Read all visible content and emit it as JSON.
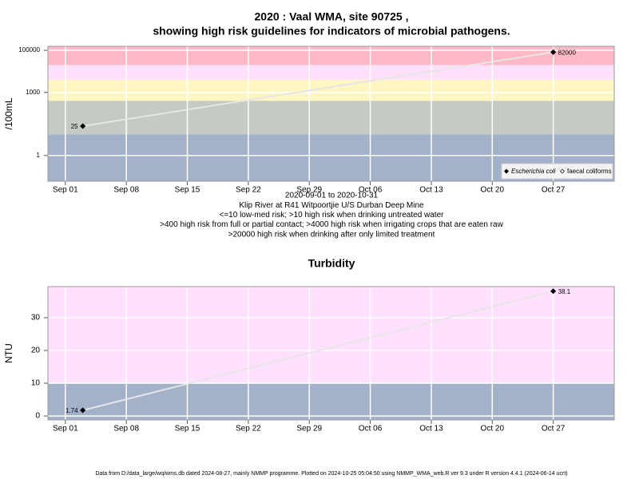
{
  "chart_data": [
    {
      "type": "line",
      "title_lines": [
        "2020 : Vaal WMA, site 90725 ,",
        "showing high risk guidelines for indicators of microbial pathogens."
      ],
      "subtitle_lines": [
        "2020-09-01 to 2020-10-31",
        "Klip River at R41 Witpoortjie U/S Durban Deep Mine",
        "<=10 low-med risk; >10 high risk when drinking untreated water",
        ">400 high risk from full or partial contact; >4000 high risk when irrigating crops that are eaten raw",
        ">20000 high risk when drinking after only limited treatment"
      ],
      "y_label": "/100mL",
      "log_y": true,
      "ylim": [
        0.06,
        155000
      ],
      "yticks": [
        1,
        1000,
        100000
      ],
      "xlim": [
        "2020-08-30",
        "2020-11-03"
      ],
      "xticks": [
        {
          "value": "2020-09-01",
          "label": "Sep 01"
        },
        {
          "value": "2020-09-08",
          "label": "Sep 08"
        },
        {
          "value": "2020-09-15",
          "label": "Sep 15"
        },
        {
          "value": "2020-09-22",
          "label": "Sep 22"
        },
        {
          "value": "2020-09-29",
          "label": "Sep 29"
        },
        {
          "value": "2020-10-06",
          "label": "Oct 06"
        },
        {
          "value": "2020-10-13",
          "label": "Oct 13"
        },
        {
          "value": "2020-10-20",
          "label": "Oct 20"
        },
        {
          "value": "2020-10-27",
          "label": "Oct 27"
        }
      ],
      "grid": true,
      "band_edges": [
        10,
        400,
        4000,
        20000
      ],
      "band_colors": [
        "#a3b2c9",
        "#c3cbc3",
        "#fff6c4",
        "#ffe0fb",
        "#ffb8c6"
      ],
      "x": [
        "2020-09-03",
        "2020-10-27"
      ],
      "series": [
        {
          "name": "Escherichia coli",
          "color": "#e6e6e6",
          "marker_fill": "#000000",
          "values": [
            25,
            82000
          ]
        },
        {
          "name": "faecal coliforms",
          "color": "#e6e6e6",
          "marker_fill": "#ffffff",
          "values": [
            null,
            null
          ]
        }
      ],
      "legend": "bottom-right"
    },
    {
      "type": "line",
      "title_lines": [
        "Turbidity"
      ],
      "y_label": "NTU",
      "log_y": false,
      "ylim": [
        -1.2,
        39.5
      ],
      "yticks": [
        0,
        10,
        20,
        30
      ],
      "xlim": [
        "2020-08-30",
        "2020-11-03"
      ],
      "xticks": [
        {
          "value": "2020-09-01",
          "label": "Sep 01"
        },
        {
          "value": "2020-09-08",
          "label": "Sep 08"
        },
        {
          "value": "2020-09-15",
          "label": "Sep 15"
        },
        {
          "value": "2020-09-22",
          "label": "Sep 22"
        },
        {
          "value": "2020-09-29",
          "label": "Sep 29"
        },
        {
          "value": "2020-10-06",
          "label": "Oct 06"
        },
        {
          "value": "2020-10-13",
          "label": "Oct 13"
        },
        {
          "value": "2020-10-20",
          "label": "Oct 20"
        },
        {
          "value": "2020-10-27",
          "label": "Oct 27"
        }
      ],
      "grid": true,
      "band_edges": [
        10
      ],
      "band_colors": [
        "#a3b2c9",
        "#ffe0ff"
      ],
      "x": [
        "2020-09-03",
        "2020-10-27"
      ],
      "series": [
        {
          "name": "Turbidity",
          "color": "#e6e6e6",
          "marker_fill": "#000000",
          "values": [
            1.74,
            38.1
          ]
        }
      ]
    }
  ],
  "footer": "Data from D:/data_large/wq/wms.db dated 2024-08-27, mainly NMMP programme. Plotted on 2024-10-25 05:04:50 using NMMP_WMA_web.R ver 9.3 under R version 4.4.1 (2024-06-14 ucrt)"
}
